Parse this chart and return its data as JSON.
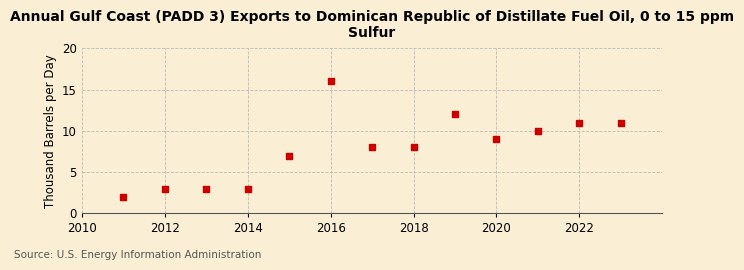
{
  "title": "Annual Gulf Coast (PADD 3) Exports to Dominican Republic of Distillate Fuel Oil, 0 to 15 ppm\nSulfur",
  "ylabel": "Thousand Barrels per Day",
  "source": "Source: U.S. Energy Information Administration",
  "years": [
    2011,
    2012,
    2013,
    2014,
    2015,
    2016,
    2017,
    2018,
    2019,
    2020,
    2021,
    2022,
    2023
  ],
  "values": [
    2,
    3,
    3,
    3,
    7,
    16,
    8,
    8,
    12,
    9,
    10,
    11,
    11
  ],
  "xlim": [
    2010,
    2024
  ],
  "ylim": [
    0,
    20
  ],
  "yticks": [
    0,
    5,
    10,
    15,
    20
  ],
  "xticks": [
    2010,
    2012,
    2014,
    2016,
    2018,
    2020,
    2022
  ],
  "marker_color": "#cc0000",
  "marker": "s",
  "marker_size": 4,
  "background_color": "#faefd4",
  "grid_color": "#bbbbbb",
  "title_fontsize": 10,
  "axis_label_fontsize": 8.5,
  "tick_fontsize": 8.5,
  "source_fontsize": 7.5
}
